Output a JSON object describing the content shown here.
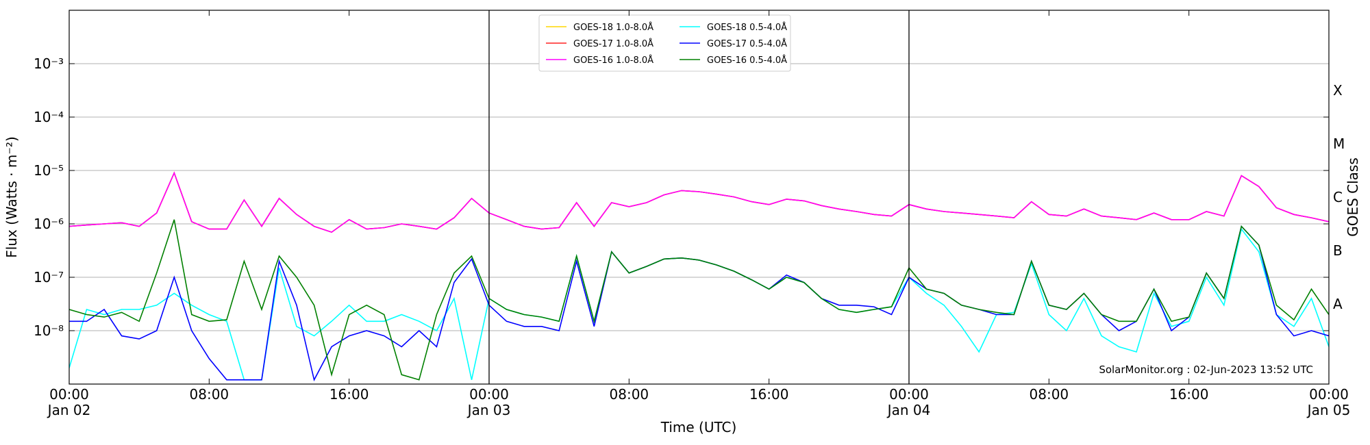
{
  "chart_data": {
    "type": "line",
    "y_label": "Flux (Watts · m⁻²)",
    "x_label": "Time (UTC)",
    "y2_label": "GOES Class",
    "annotation": "SolarMonitor.org : 02-Jun-2023 13:52 UTC",
    "log_y": true,
    "grid": true,
    "legend": "upper center",
    "x": [
      "Jan 02 00:00",
      "Jan 02 01:00",
      "Jan 02 02:00",
      "Jan 02 03:00",
      "Jan 02 04:00",
      "Jan 02 05:00",
      "Jan 02 06:00",
      "Jan 02 07:00",
      "Jan 02 08:00",
      "Jan 02 09:00",
      "Jan 02 10:00",
      "Jan 02 11:00",
      "Jan 02 12:00",
      "Jan 02 13:00",
      "Jan 02 14:00",
      "Jan 02 15:00",
      "Jan 02 16:00",
      "Jan 02 17:00",
      "Jan 02 18:00",
      "Jan 02 19:00",
      "Jan 02 20:00",
      "Jan 02 21:00",
      "Jan 02 22:00",
      "Jan 02 23:00",
      "Jan 03 00:00",
      "Jan 03 01:00",
      "Jan 03 02:00",
      "Jan 03 03:00",
      "Jan 03 04:00",
      "Jan 03 05:00",
      "Jan 03 06:00",
      "Jan 03 07:00",
      "Jan 03 08:00",
      "Jan 03 09:00",
      "Jan 03 10:00",
      "Jan 03 11:00",
      "Jan 03 12:00",
      "Jan 03 13:00",
      "Jan 03 14:00",
      "Jan 03 15:00",
      "Jan 03 16:00",
      "Jan 03 17:00",
      "Jan 03 18:00",
      "Jan 03 19:00",
      "Jan 03 20:00",
      "Jan 03 21:00",
      "Jan 03 22:00",
      "Jan 03 23:00",
      "Jan 04 00:00",
      "Jan 04 01:00",
      "Jan 04 02:00",
      "Jan 04 03:00",
      "Jan 04 04:00",
      "Jan 04 05:00",
      "Jan 04 06:00",
      "Jan 04 07:00",
      "Jan 04 08:00",
      "Jan 04 09:00",
      "Jan 04 10:00",
      "Jan 04 11:00",
      "Jan 04 12:00",
      "Jan 04 13:00",
      "Jan 04 14:00",
      "Jan 04 15:00",
      "Jan 04 16:00",
      "Jan 04 17:00",
      "Jan 04 18:00",
      "Jan 04 19:00",
      "Jan 04 20:00",
      "Jan 04 21:00",
      "Jan 04 22:00",
      "Jan 04 23:00",
      "Jan 05 00:00"
    ],
    "xlim": [
      "Jan 02 00:00",
      "Jan 05 00:00"
    ],
    "xticks": [
      {
        "value": "Jan 02 00:00",
        "label": "00:00\nJan 02"
      },
      {
        "value": "Jan 02 08:00",
        "label": "08:00"
      },
      {
        "value": "Jan 02 16:00",
        "label": "16:00"
      },
      {
        "value": "Jan 03 00:00",
        "label": "00:00\nJan 03"
      },
      {
        "value": "Jan 03 08:00",
        "label": "08:00"
      },
      {
        "value": "Jan 03 16:00",
        "label": "16:00"
      },
      {
        "value": "Jan 04 00:00",
        "label": "00:00\nJan 04"
      },
      {
        "value": "Jan 04 08:00",
        "label": "08:00"
      },
      {
        "value": "Jan 04 16:00",
        "label": "16:00"
      },
      {
        "value": "Jan 05 00:00",
        "label": "00:00\nJan 05"
      }
    ],
    "day_lines": [
      "Jan 03 00:00",
      "Jan 04 00:00"
    ],
    "ylim": [
      1e-09,
      0.01
    ],
    "yticks": [
      {
        "value": 1e-08,
        "label": "10⁻⁸"
      },
      {
        "value": 1e-07,
        "label": "10⁻⁷"
      },
      {
        "value": 1e-06,
        "label": "10⁻⁶"
      },
      {
        "value": 1e-05,
        "label": "10⁻⁵"
      },
      {
        "value": 0.0001,
        "label": "10⁻⁴"
      },
      {
        "value": 0.001,
        "label": "10⁻³"
      }
    ],
    "y2lim": [
      1e-09,
      0.01
    ],
    "y2ticks": [
      {
        "value": 1e-08,
        "label": "A"
      },
      {
        "value": 1e-07,
        "label": "B"
      },
      {
        "value": 1e-06,
        "label": "C"
      },
      {
        "value": 1e-05,
        "label": "M"
      },
      {
        "value": 0.0001,
        "label": "X"
      }
    ],
    "series": [
      {
        "name": "GOES-18 1.0-8.0Å",
        "color": "#ffd700",
        "values": [
          9e-07,
          9.5e-07,
          1e-06,
          1.05e-06,
          9e-07,
          1.6e-06,
          9e-06,
          1.1e-06,
          8e-07,
          8e-07,
          2.8e-06,
          9e-07,
          3e-06,
          1.5e-06,
          9e-07,
          7e-07,
          1.2e-06,
          8e-07,
          8.5e-07,
          1e-06,
          9e-07,
          8e-07,
          1.3e-06,
          3e-06,
          1.6e-06,
          1.2e-06,
          9e-07,
          8e-07,
          8.5e-07,
          2.5e-06,
          9e-07,
          2.5e-06,
          2.1e-06,
          2.5e-06,
          3.5e-06,
          4.2e-06,
          4e-06,
          3.6e-06,
          3.2e-06,
          2.6e-06,
          2.3e-06,
          2.9e-06,
          2.7e-06,
          2.2e-06,
          1.9e-06,
          1.7e-06,
          1.5e-06,
          1.4e-06,
          2.3e-06,
          1.9e-06,
          1.7e-06,
          1.6e-06,
          1.5e-06,
          1.4e-06,
          1.3e-06,
          2.6e-06,
          1.5e-06,
          1.4e-06,
          1.9e-06,
          1.4e-06,
          1.3e-06,
          1.2e-06,
          1.6e-06,
          1.2e-06,
          1.2e-06,
          1.7e-06,
          1.4e-06,
          8e-06,
          5e-06,
          2e-06,
          1.5e-06,
          1.3e-06,
          1.1e-06
        ]
      },
      {
        "name": "GOES-17 1.0-8.0Å",
        "color": "#ff2020",
        "values": [
          9e-07,
          9.5e-07,
          1e-06,
          1.05e-06,
          9e-07,
          1.6e-06,
          9e-06,
          1.1e-06,
          8e-07,
          8e-07,
          2.8e-06,
          9e-07,
          3e-06,
          1.5e-06,
          9e-07,
          7e-07,
          1.2e-06,
          8e-07,
          8.5e-07,
          1e-06,
          9e-07,
          8e-07,
          1.3e-06,
          3e-06,
          1.6e-06,
          1.2e-06,
          9e-07,
          8e-07,
          8.5e-07,
          2.5e-06,
          9e-07,
          2.5e-06,
          2.1e-06,
          2.5e-06,
          3.5e-06,
          4.2e-06,
          4e-06,
          3.6e-06,
          3.2e-06,
          2.6e-06,
          2.3e-06,
          2.9e-06,
          2.7e-06,
          2.2e-06,
          1.9e-06,
          1.7e-06,
          1.5e-06,
          1.4e-06,
          2.3e-06,
          1.9e-06,
          1.7e-06,
          1.6e-06,
          1.5e-06,
          1.4e-06,
          1.3e-06,
          2.6e-06,
          1.5e-06,
          1.4e-06,
          1.9e-06,
          1.4e-06,
          1.3e-06,
          1.2e-06,
          1.6e-06,
          1.2e-06,
          1.2e-06,
          1.7e-06,
          1.4e-06,
          8e-06,
          5e-06,
          2e-06,
          1.5e-06,
          1.3e-06,
          1.1e-06
        ]
      },
      {
        "name": "GOES-16 1.0-8.0Å",
        "color": "#ff00ff",
        "values": [
          9e-07,
          9.5e-07,
          1e-06,
          1.05e-06,
          9e-07,
          1.6e-06,
          9e-06,
          1.1e-06,
          8e-07,
          8e-07,
          2.8e-06,
          9e-07,
          3e-06,
          1.5e-06,
          9e-07,
          7e-07,
          1.2e-06,
          8e-07,
          8.5e-07,
          1e-06,
          9e-07,
          8e-07,
          1.3e-06,
          3e-06,
          1.6e-06,
          1.2e-06,
          9e-07,
          8e-07,
          8.5e-07,
          2.5e-06,
          9e-07,
          2.5e-06,
          2.1e-06,
          2.5e-06,
          3.5e-06,
          4.2e-06,
          4e-06,
          3.6e-06,
          3.2e-06,
          2.6e-06,
          2.3e-06,
          2.9e-06,
          2.7e-06,
          2.2e-06,
          1.9e-06,
          1.7e-06,
          1.5e-06,
          1.4e-06,
          2.3e-06,
          1.9e-06,
          1.7e-06,
          1.6e-06,
          1.5e-06,
          1.4e-06,
          1.3e-06,
          2.6e-06,
          1.5e-06,
          1.4e-06,
          1.9e-06,
          1.4e-06,
          1.3e-06,
          1.2e-06,
          1.6e-06,
          1.2e-06,
          1.2e-06,
          1.7e-06,
          1.4e-06,
          8e-06,
          5e-06,
          2e-06,
          1.5e-06,
          1.3e-06,
          1.1e-06
        ]
      },
      {
        "name": "GOES-18 0.5-4.0Å",
        "color": "#00ffff",
        "values": [
          2e-09,
          2.5e-08,
          2e-08,
          2.5e-08,
          2.5e-08,
          3e-08,
          5e-08,
          3e-08,
          2e-08,
          1.5e-08,
          1.2e-09,
          1.2e-09,
          1.5e-07,
          1.2e-08,
          8e-09,
          1.5e-08,
          3e-08,
          1.5e-08,
          1.5e-08,
          2e-08,
          1.5e-08,
          1e-08,
          4e-08,
          1.2e-09,
          4e-08,
          2.5e-08,
          2e-08,
          1.8e-08,
          1.5e-08,
          2.5e-07,
          1.5e-08,
          3e-07,
          1.2e-07,
          1.6e-07,
          2.2e-07,
          2.3e-07,
          2.1e-07,
          1.7e-07,
          1.3e-07,
          9e-08,
          6e-08,
          1e-07,
          8e-08,
          4e-08,
          2.5e-08,
          2.2e-08,
          2.5e-08,
          2.8e-08,
          1e-07,
          5e-08,
          3e-08,
          1.2e-08,
          4e-09,
          2e-08,
          2.2e-08,
          1.8e-07,
          2e-08,
          1e-08,
          4e-08,
          8e-09,
          5e-09,
          4e-09,
          5e-08,
          1.2e-08,
          1.5e-08,
          1e-07,
          3e-08,
          8e-07,
          3e-07,
          2e-08,
          1.2e-08,
          4e-08,
          5e-09
        ]
      },
      {
        "name": "GOES-17 0.5-4.0Å",
        "color": "#0000ff",
        "values": [
          1.5e-08,
          1.5e-08,
          2.5e-08,
          8e-09,
          7e-09,
          1e-08,
          1e-07,
          1e-08,
          3e-09,
          1.2e-09,
          1.2e-09,
          1.2e-09,
          2e-07,
          3e-08,
          1.2e-09,
          5e-09,
          8e-09,
          1e-08,
          8e-09,
          5e-09,
          1e-08,
          5e-09,
          8e-08,
          2.2e-07,
          3e-08,
          1.5e-08,
          1.2e-08,
          1.2e-08,
          1e-08,
          2e-07,
          1.2e-08,
          3e-07,
          1.2e-07,
          1.6e-07,
          2.2e-07,
          2.3e-07,
          2.1e-07,
          1.7e-07,
          1.3e-07,
          9e-08,
          6e-08,
          1.1e-07,
          8e-08,
          4e-08,
          3e-08,
          3e-08,
          2.8e-08,
          2e-08,
          1e-07,
          6e-08,
          5e-08,
          3e-08,
          2.5e-08,
          2e-08,
          2e-08,
          2e-07,
          3e-08,
          2.5e-08,
          5e-08,
          2e-08,
          1e-08,
          1.5e-08,
          6e-08,
          1e-08,
          1.8e-08,
          1.2e-07,
          4e-08,
          9e-07,
          4e-07,
          2e-08,
          8e-09,
          1e-08,
          8e-09
        ]
      },
      {
        "name": "GOES-16 0.5-4.0Å",
        "color": "#008000",
        "values": [
          2.5e-08,
          2e-08,
          1.8e-08,
          2.2e-08,
          1.5e-08,
          1.2e-07,
          1.2e-06,
          2e-08,
          1.5e-08,
          1.6e-08,
          2e-07,
          2.5e-08,
          2.5e-07,
          1e-07,
          3e-08,
          1.5e-09,
          2e-08,
          3e-08,
          2e-08,
          1.5e-09,
          1.2e-09,
          2e-08,
          1.2e-07,
          2.5e-07,
          4e-08,
          2.5e-08,
          2e-08,
          1.8e-08,
          1.5e-08,
          2.5e-07,
          1.5e-08,
          3e-07,
          1.2e-07,
          1.6e-07,
          2.2e-07,
          2.3e-07,
          2.1e-07,
          1.7e-07,
          1.3e-07,
          9e-08,
          6e-08,
          1e-07,
          8e-08,
          4e-08,
          2.5e-08,
          2.2e-08,
          2.5e-08,
          2.8e-08,
          1.5e-07,
          6e-08,
          5e-08,
          3e-08,
          2.5e-08,
          2.2e-08,
          2e-08,
          2e-07,
          3e-08,
          2.5e-08,
          5e-08,
          2e-08,
          1.5e-08,
          1.5e-08,
          6e-08,
          1.5e-08,
          1.8e-08,
          1.2e-07,
          4e-08,
          9e-07,
          4e-07,
          3e-08,
          1.6e-08,
          6e-08,
          2e-08
        ]
      }
    ]
  }
}
